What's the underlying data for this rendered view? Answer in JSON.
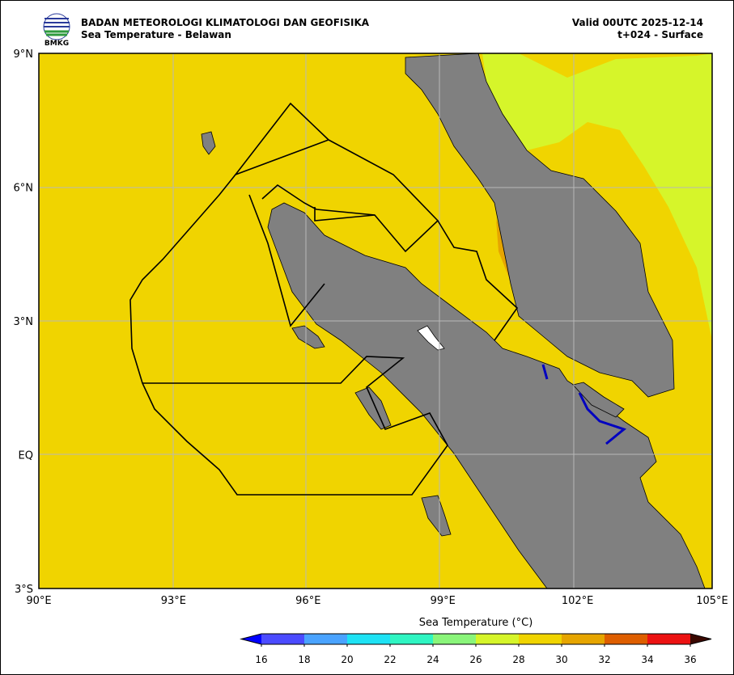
{
  "header": {
    "organization": "BADAN METEOROLOGI KLIMATOLOGI DAN GEOFISIKA",
    "product": "Sea Temperature - Belawan",
    "valid": "Valid 00UTC 2025-12-14",
    "step": "t+024 - Surface",
    "logo_text": "BMKG"
  },
  "map": {
    "lat_labels": [
      "9°N",
      "6°N",
      "3°N",
      "EQ",
      "3°S"
    ],
    "lon_labels": [
      "90°E",
      "93°E",
      "96°E",
      "99°E",
      "102°E",
      "105°E"
    ]
  },
  "colorbar": {
    "title": "Sea Temperature (°C)",
    "ticks": [
      16,
      18,
      20,
      22,
      24,
      26,
      28,
      30,
      32,
      34,
      36
    ],
    "colors": [
      "#4b4bff",
      "#4aa3ff",
      "#1ee2f4",
      "#2ff5c2",
      "#8af57a",
      "#d6f52a",
      "#f0d400",
      "#e6a500",
      "#de5e00",
      "#ec1212"
    ],
    "under_color": "#0000ff",
    "over_color": "#3a0800"
  }
}
